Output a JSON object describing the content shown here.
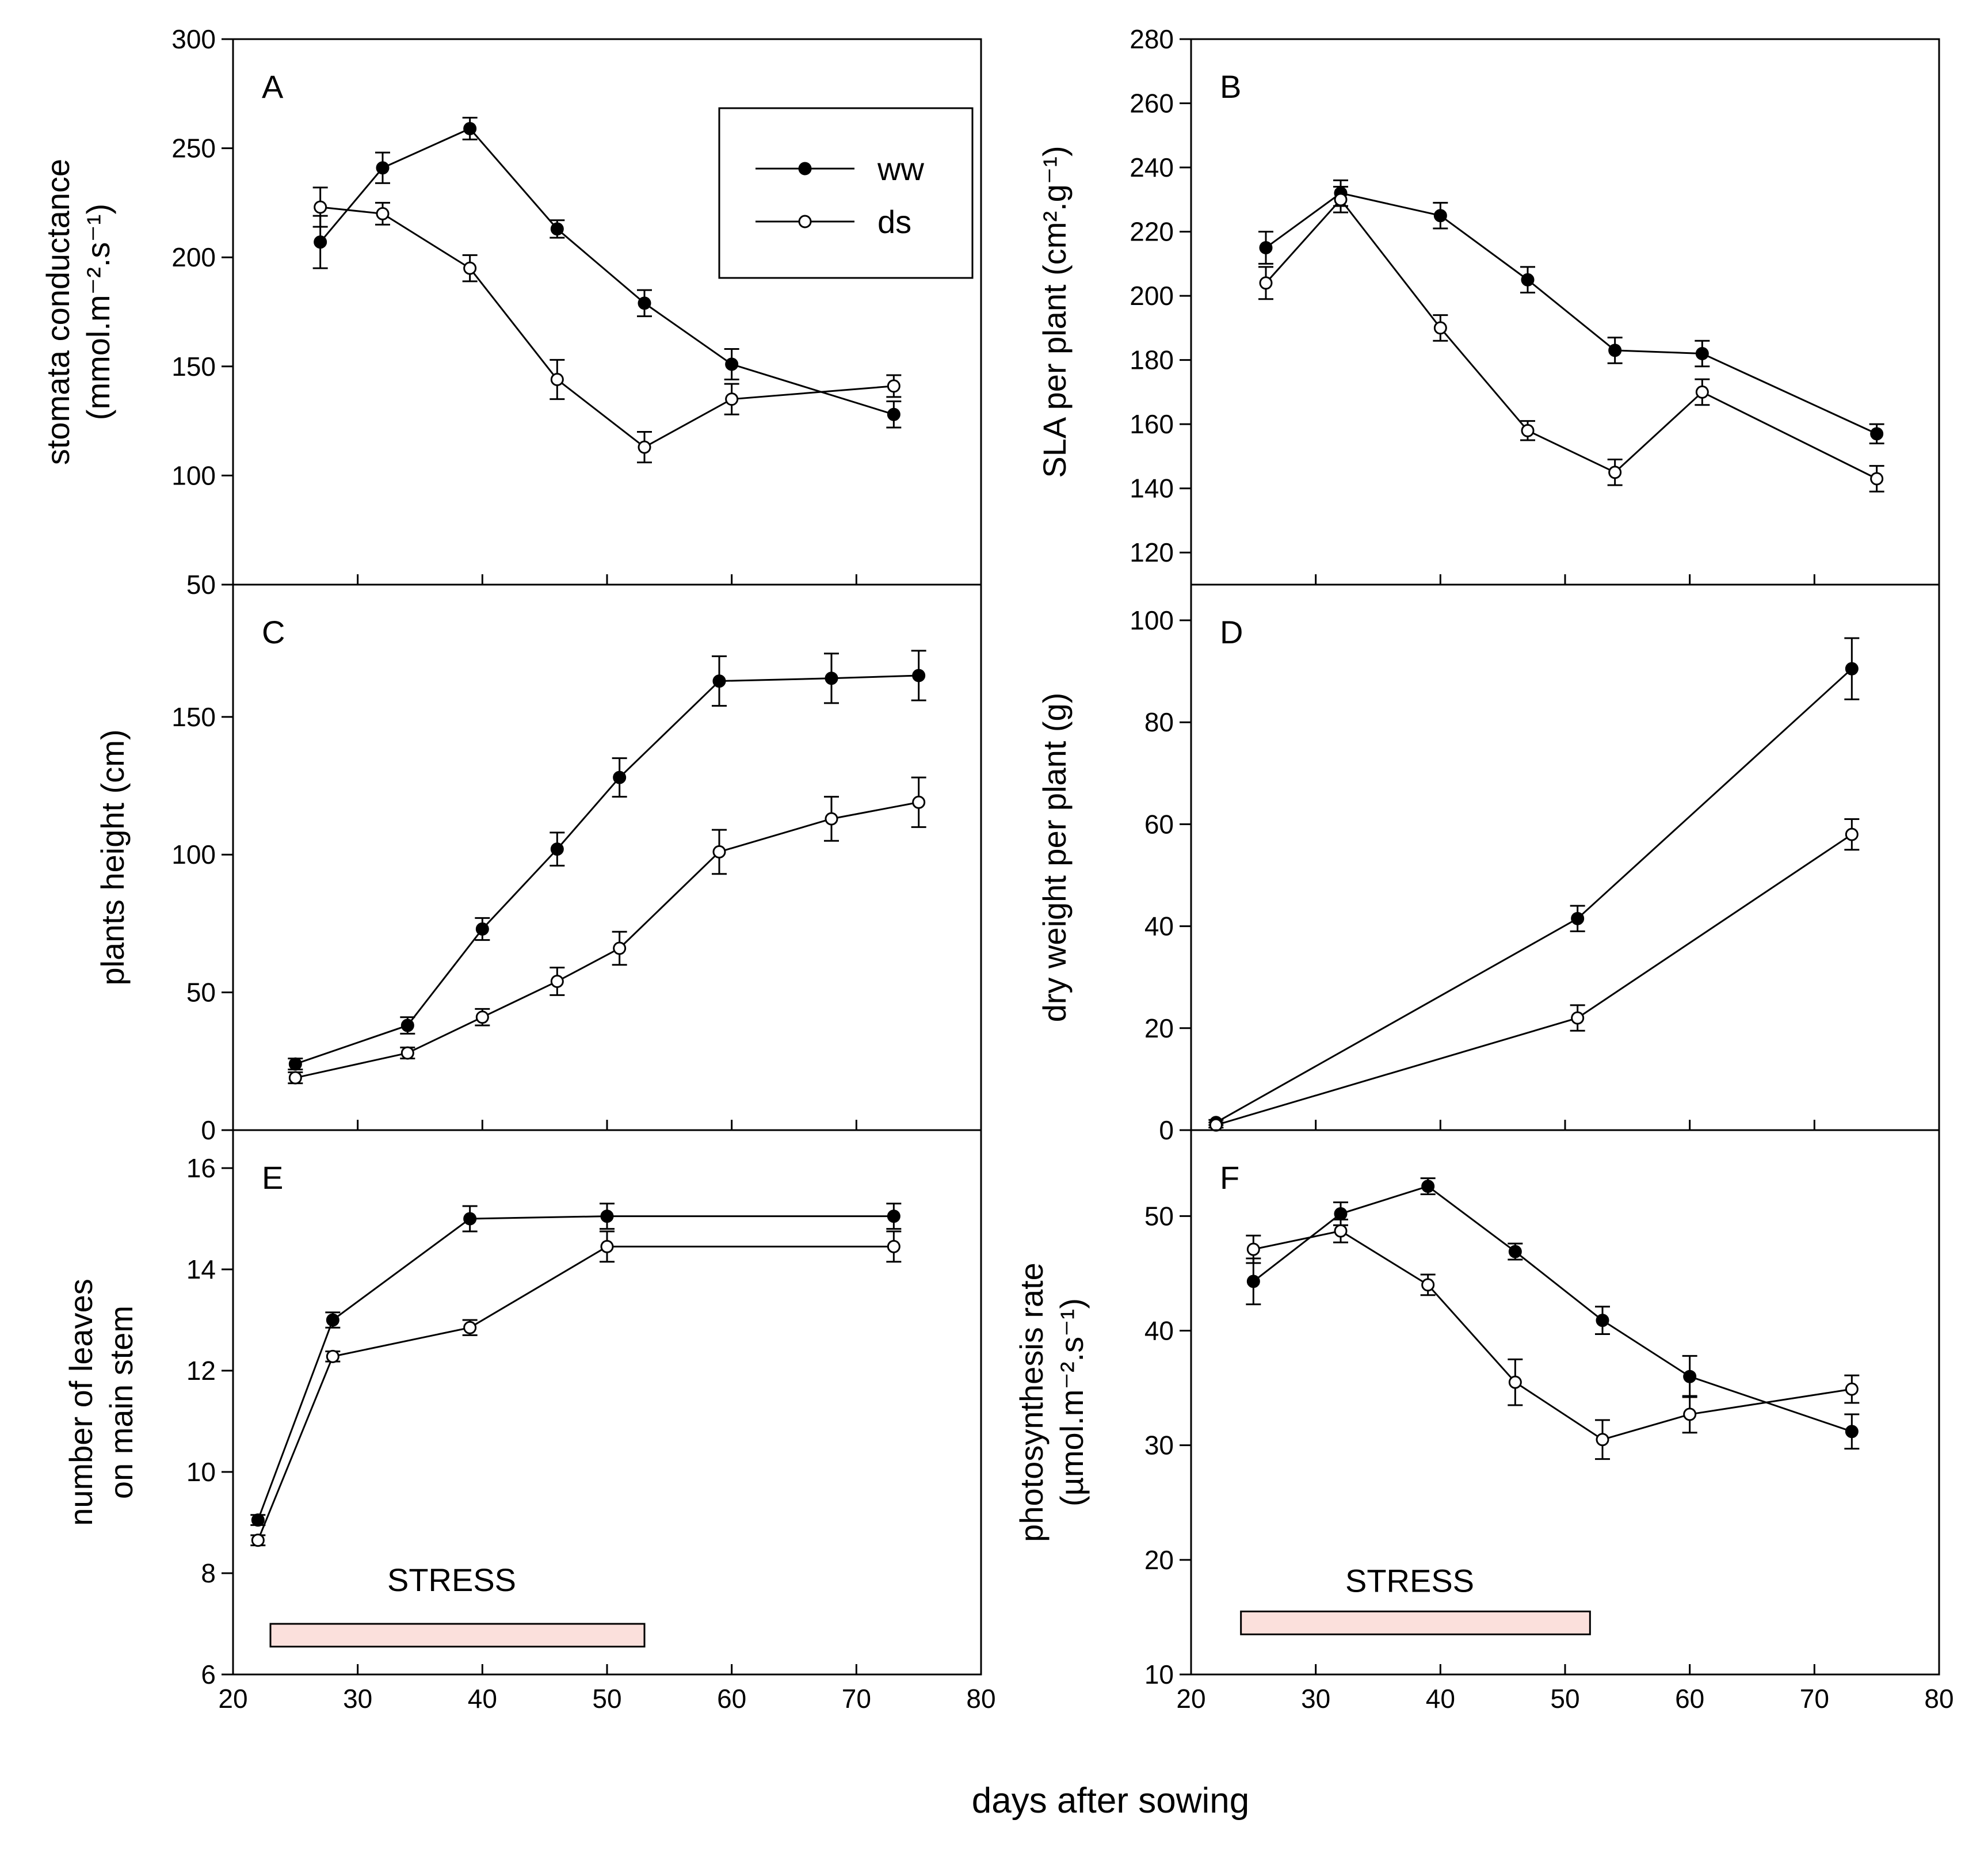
{
  "colors": {
    "axis": "#000000",
    "stress_fill": "#fbe0dc",
    "filled": "#000000",
    "open": "#ffffff"
  },
  "xlabel": "days after sowing",
  "legend": {
    "ww": "ww",
    "ds": "ds"
  },
  "stress_label": "STRESS",
  "chart_data": [
    {
      "id": "A",
      "panel": "A",
      "type": "line",
      "ylabel_lines": [
        "stomata conductance",
        "(mmol.m⁻².s⁻¹)"
      ],
      "xlim": [
        20,
        80
      ],
      "ylim": [
        50,
        300
      ],
      "xticks": [
        20,
        30,
        40,
        50,
        60,
        70,
        80
      ],
      "yticks": [
        50,
        100,
        150,
        200,
        250,
        300
      ],
      "has_legend": true,
      "stress": null,
      "series": [
        {
          "name": "ww",
          "marker": "filled",
          "x": [
            27,
            32,
            39,
            46,
            53,
            60,
            73
          ],
          "y": [
            207,
            241,
            259,
            213,
            179,
            151,
            128
          ],
          "err": [
            12,
            7,
            5,
            4,
            6,
            7,
            6
          ]
        },
        {
          "name": "ds",
          "marker": "open",
          "x": [
            27,
            32,
            39,
            46,
            53,
            60,
            73
          ],
          "y": [
            223,
            220,
            195,
            144,
            113,
            135,
            141
          ],
          "err": [
            9,
            5,
            6,
            9,
            7,
            7,
            5
          ]
        }
      ]
    },
    {
      "id": "B",
      "panel": "B",
      "type": "line",
      "ylabel_lines": [
        "SLA per plant (cm².g⁻¹)"
      ],
      "xlim": [
        20,
        80
      ],
      "ylim": [
        110,
        280
      ],
      "xticks": [
        20,
        30,
        40,
        50,
        60,
        70,
        80
      ],
      "yticks": [
        120,
        140,
        160,
        180,
        200,
        220,
        240,
        260,
        280
      ],
      "has_legend": false,
      "stress": null,
      "series": [
        {
          "name": "ww",
          "marker": "filled",
          "x": [
            26,
            32,
            40,
            47,
            54,
            61,
            75
          ],
          "y": [
            215,
            232,
            225,
            205,
            183,
            182,
            157
          ],
          "err": [
            5,
            4,
            4,
            4,
            4,
            4,
            3
          ]
        },
        {
          "name": "ds",
          "marker": "open",
          "x": [
            26,
            32,
            40,
            47,
            54,
            61,
            75
          ],
          "y": [
            204,
            230,
            190,
            158,
            145,
            170,
            143
          ],
          "err": [
            5,
            4,
            4,
            3,
            4,
            4,
            4
          ]
        }
      ]
    },
    {
      "id": "C",
      "panel": "C",
      "type": "line",
      "ylabel_lines": [
        "plants height (cm)"
      ],
      "xlim": [
        20,
        80
      ],
      "ylim": [
        0,
        198
      ],
      "xticks": [
        20,
        30,
        40,
        50,
        60,
        70,
        80
      ],
      "yticks": [
        0,
        50,
        100,
        150
      ],
      "has_legend": false,
      "stress": null,
      "series": [
        {
          "name": "ww",
          "marker": "filled",
          "x": [
            25,
            34,
            40,
            46,
            51,
            59,
            68,
            75
          ],
          "y": [
            24,
            38,
            73,
            102,
            128,
            163,
            164,
            165
          ],
          "err": [
            2,
            3,
            4,
            6,
            7,
            9,
            9,
            9
          ]
        },
        {
          "name": "ds",
          "marker": "open",
          "x": [
            25,
            34,
            40,
            46,
            51,
            59,
            68,
            75
          ],
          "y": [
            19,
            28,
            41,
            54,
            66,
            101,
            113,
            119
          ],
          "err": [
            2,
            2,
            3,
            5,
            6,
            8,
            8,
            9
          ]
        }
      ]
    },
    {
      "id": "D",
      "panel": "D",
      "type": "line",
      "ylabel_lines": [
        "dry weight per plant (g)"
      ],
      "xlim": [
        20,
        80
      ],
      "ylim": [
        0,
        107
      ],
      "xticks": [
        20,
        30,
        40,
        50,
        60,
        70,
        80
      ],
      "yticks": [
        0,
        20,
        40,
        60,
        80,
        100
      ],
      "has_legend": false,
      "stress": null,
      "series": [
        {
          "name": "ww",
          "marker": "filled",
          "x": [
            22,
            51,
            73
          ],
          "y": [
            1.5,
            41.5,
            90.5
          ],
          "err": [
            0.5,
            2.5,
            6
          ]
        },
        {
          "name": "ds",
          "marker": "open",
          "x": [
            22,
            51,
            73
          ],
          "y": [
            1,
            22,
            58
          ],
          "err": [
            0.5,
            2.5,
            3
          ]
        }
      ]
    },
    {
      "id": "E",
      "panel": "E",
      "type": "line",
      "ylabel_lines": [
        "number of leaves",
        "on main stem"
      ],
      "xlim": [
        20,
        80
      ],
      "ylim": [
        6,
        16.75
      ],
      "xticks": [
        20,
        30,
        40,
        50,
        60,
        70,
        80
      ],
      "yticks": [
        6,
        8,
        10,
        12,
        14,
        16
      ],
      "has_legend": false,
      "stress": {
        "x_start": 23,
        "x_end": 53,
        "y_low": 6.55,
        "y_high": 7.0,
        "label_y": 7.65
      },
      "series": [
        {
          "name": "ww",
          "marker": "filled",
          "x": [
            22,
            28,
            39,
            50,
            73
          ],
          "y": [
            9.05,
            13.0,
            15.0,
            15.05,
            15.05
          ],
          "err": [
            0.1,
            0.15,
            0.25,
            0.25,
            0.25
          ]
        },
        {
          "name": "ds",
          "marker": "open",
          "x": [
            22,
            28,
            39,
            50,
            73
          ],
          "y": [
            8.65,
            12.28,
            12.85,
            14.45,
            14.45
          ],
          "err": [
            0.1,
            0.1,
            0.15,
            0.3,
            0.3
          ]
        }
      ]
    },
    {
      "id": "F",
      "panel": "F",
      "type": "line",
      "ylabel_lines": [
        "photosynthesis rate",
        "(µmol.m⁻².s⁻¹)"
      ],
      "xlim": [
        20,
        80
      ],
      "ylim": [
        10,
        57.5
      ],
      "xticks": [
        20,
        30,
        40,
        50,
        60,
        70,
        80
      ],
      "yticks": [
        10,
        20,
        30,
        40,
        50
      ],
      "has_legend": false,
      "stress": {
        "x_start": 24,
        "x_end": 52,
        "y_low": 13.5,
        "y_high": 15.5,
        "label_y": 17.2
      },
      "series": [
        {
          "name": "ww",
          "marker": "filled",
          "x": [
            25,
            32,
            39,
            46,
            53,
            60,
            73
          ],
          "y": [
            44.3,
            50.2,
            52.6,
            46.9,
            40.9,
            36.0,
            31.2
          ],
          "err": [
            2,
            1,
            0.7,
            0.7,
            1.2,
            1.8,
            1.5
          ]
        },
        {
          "name": "ds",
          "marker": "open",
          "x": [
            25,
            32,
            39,
            46,
            53,
            60,
            73
          ],
          "y": [
            47.1,
            48.7,
            44.0,
            35.5,
            30.5,
            32.7,
            34.9
          ],
          "err": [
            1.2,
            1,
            0.9,
            2,
            1.7,
            1.6,
            1.2
          ]
        }
      ]
    }
  ]
}
